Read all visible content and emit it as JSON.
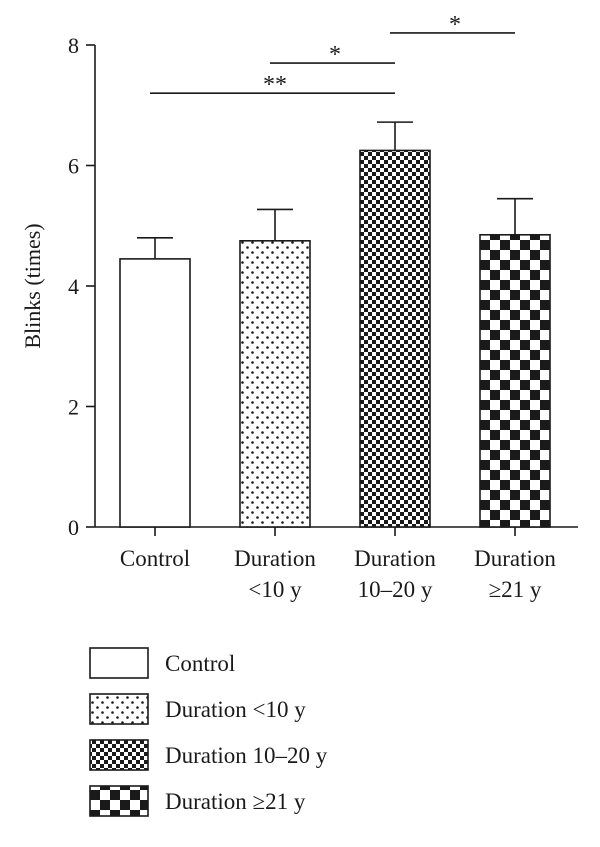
{
  "chart_data": {
    "type": "bar",
    "ylabel": "Blinks (times)",
    "ylim": [
      0,
      8
    ],
    "yticks": [
      0,
      2,
      4,
      6,
      8
    ],
    "categories": [
      {
        "lines": [
          "Control"
        ],
        "pattern": "plain"
      },
      {
        "lines": [
          "Duration",
          "<10 y"
        ],
        "pattern": "dots"
      },
      {
        "lines": [
          "Duration",
          "10–20 y"
        ],
        "pattern": "finecheck"
      },
      {
        "lines": [
          "Duration",
          "≥21 y"
        ],
        "pattern": "coarsecheck"
      }
    ],
    "values": [
      4.45,
      4.75,
      6.25,
      4.85
    ],
    "errors": [
      0.35,
      0.52,
      0.47,
      0.6
    ],
    "significance": [
      {
        "from": 0,
        "to": 2,
        "level": 7.2,
        "label": "**"
      },
      {
        "from": 1,
        "to": 2,
        "level": 7.7,
        "label": "*"
      },
      {
        "from": 2,
        "to": 3,
        "level": 8.2,
        "label": "*"
      }
    ],
    "legend": {
      "placement": "bottom-left",
      "entries": [
        "Control",
        "Duration <10 y",
        "Duration 10–20 y",
        "Duration ≥21 y"
      ]
    }
  }
}
